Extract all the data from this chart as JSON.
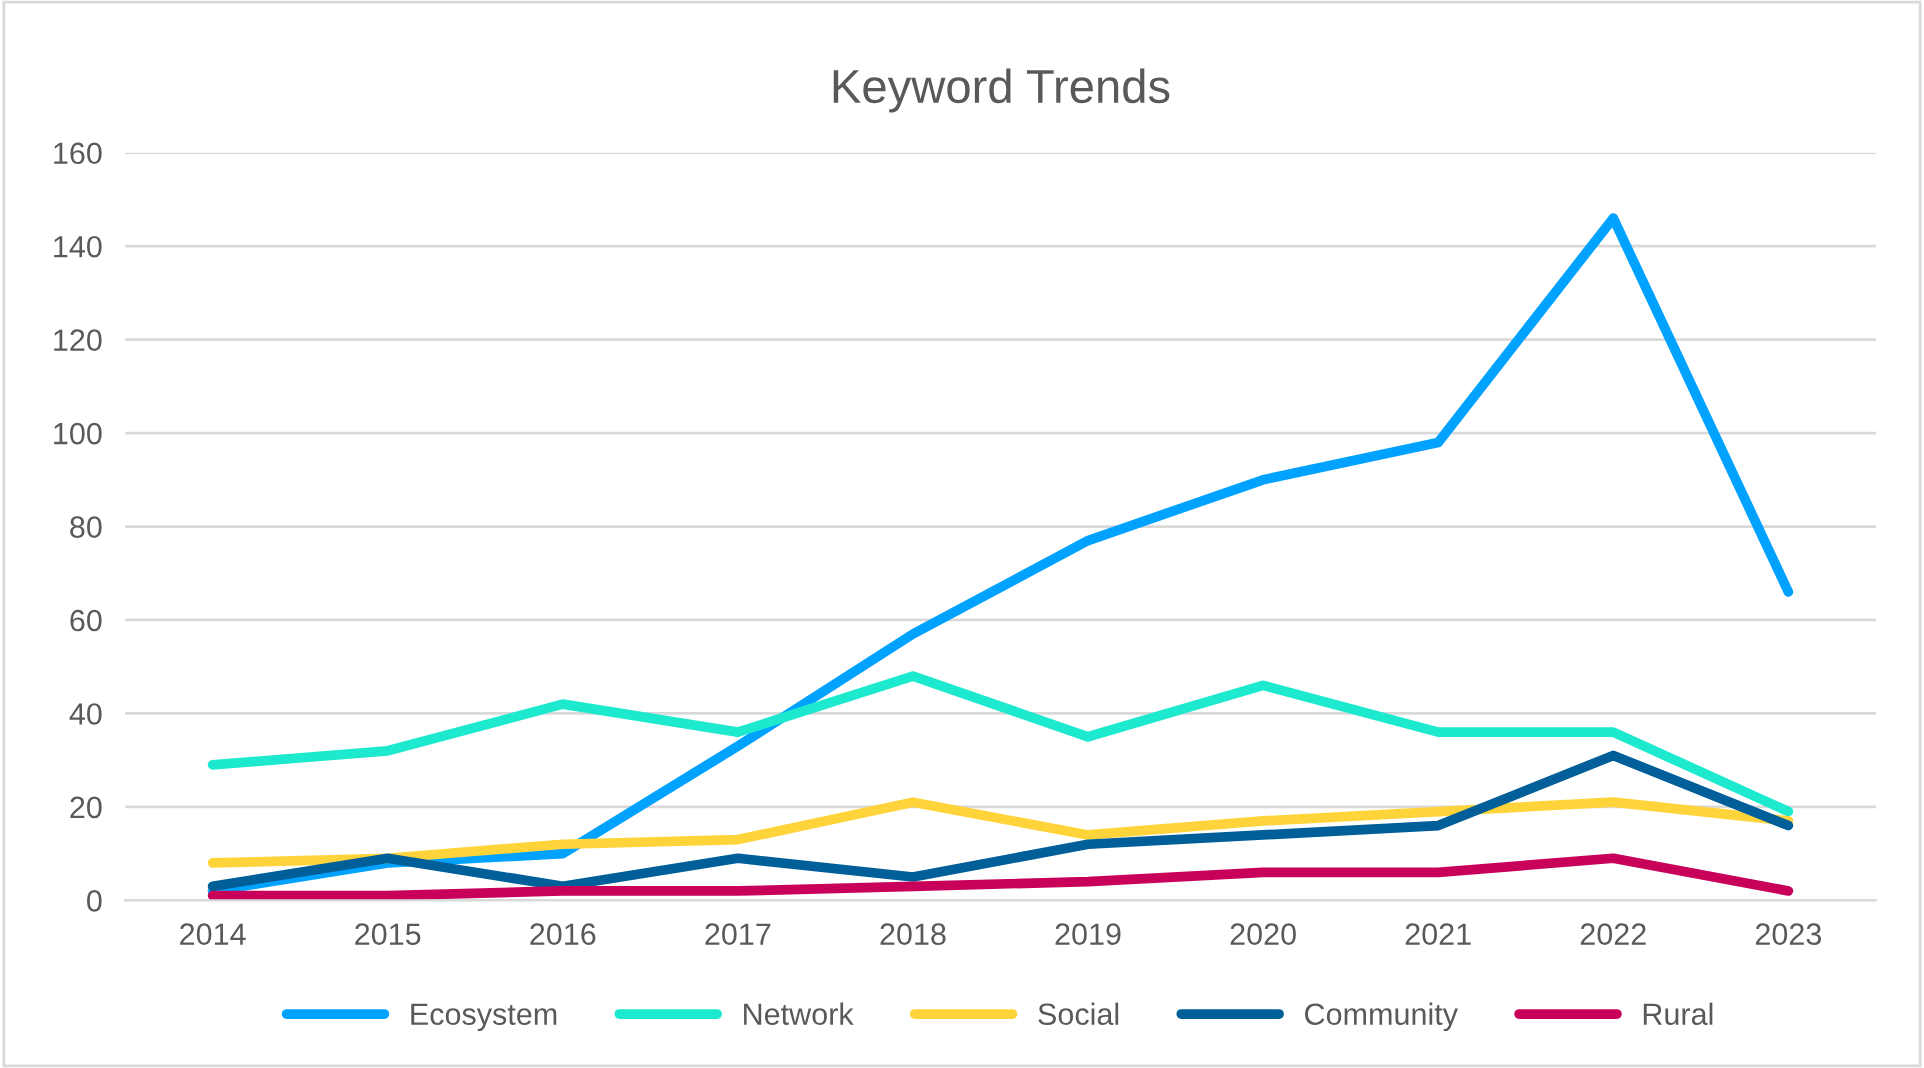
{
  "chart_data": {
    "type": "line",
    "title": "Keyword Trends",
    "categories": [
      "2014",
      "2015",
      "2016",
      "2017",
      "2018",
      "2019",
      "2020",
      "2021",
      "2022",
      "2023"
    ],
    "series": [
      {
        "name": "Ecosystem",
        "color": "#00a2ff",
        "values": [
          2,
          8,
          10,
          33,
          57,
          77,
          90,
          98,
          146,
          66
        ]
      },
      {
        "name": "Network",
        "color": "#1de9cf",
        "values": [
          29,
          32,
          42,
          36,
          48,
          35,
          46,
          36,
          36,
          19
        ]
      },
      {
        "name": "Social",
        "color": "#ffd43b",
        "values": [
          8,
          9,
          12,
          13,
          21,
          14,
          17,
          19,
          21,
          17
        ]
      },
      {
        "name": "Community",
        "color": "#005f99",
        "values": [
          3,
          9,
          3,
          9,
          5,
          12,
          14,
          16,
          31,
          16
        ]
      },
      {
        "name": "Rural",
        "color": "#c8005a",
        "values": [
          1,
          1,
          2,
          2,
          3,
          4,
          6,
          6,
          9,
          2
        ]
      }
    ],
    "ylim": [
      0,
      160
    ],
    "yticks": [
      0,
      20,
      40,
      60,
      80,
      100,
      120,
      140,
      160
    ],
    "grid": "y",
    "legend": "bottom",
    "marker": "none",
    "line_style": "solid"
  }
}
